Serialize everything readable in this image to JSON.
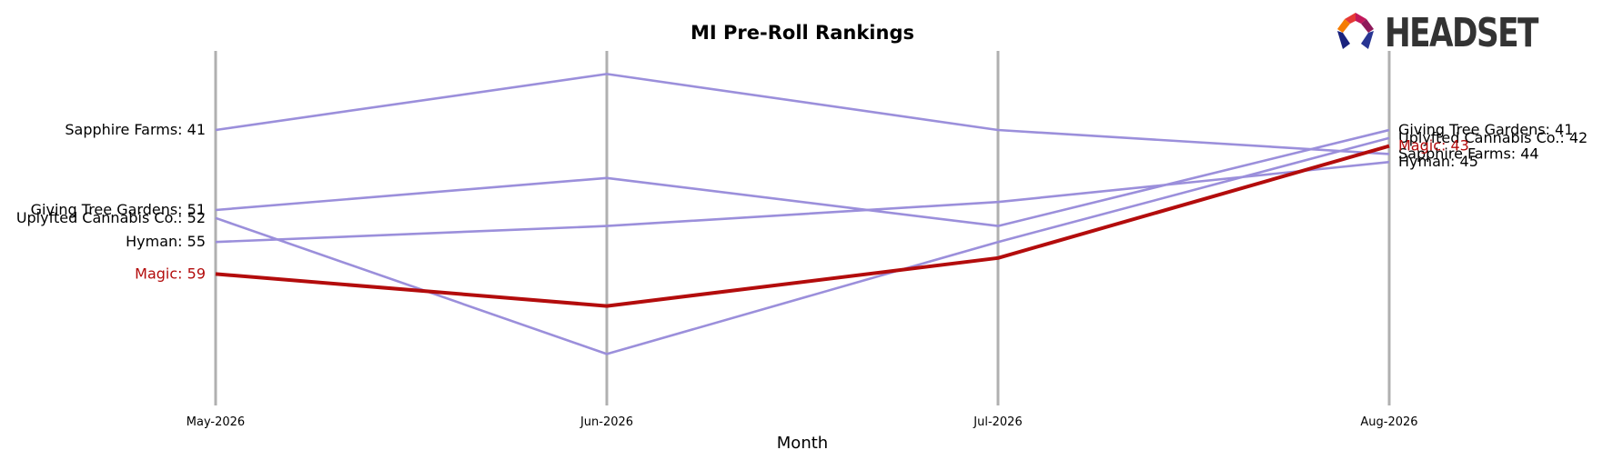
{
  "chart_data": {
    "type": "line",
    "title": "MI Pre-Roll Rankings",
    "xlabel": "Month",
    "ylabel": "",
    "categories": [
      "May-2026",
      "Jun-2026",
      "Jul-2026",
      "Aug-2026"
    ],
    "ylim": [
      31,
      71
    ],
    "y_inverted": true,
    "highlight": "Magic",
    "series": [
      {
        "name": "Sapphire Farms",
        "values": [
          41,
          34,
          41,
          44
        ]
      },
      {
        "name": "Giving Tree Gardens",
        "values": [
          51,
          47,
          53,
          41
        ]
      },
      {
        "name": "Uplyfted Cannabis Co.",
        "values": [
          52,
          69,
          55,
          42
        ]
      },
      {
        "name": "Hyman",
        "values": [
          55,
          53,
          50,
          45
        ]
      },
      {
        "name": "Magic",
        "values": [
          59,
          63,
          57,
          43
        ]
      }
    ],
    "colors": {
      "default_line": "#9b8fdb",
      "highlight_line": "#b30c0c",
      "grid": "#b0b0b0",
      "text": "#000000",
      "highlight_text": "#b30c0c"
    },
    "grid": true,
    "legend": "none"
  },
  "logo": {
    "text": "HEADSET"
  }
}
